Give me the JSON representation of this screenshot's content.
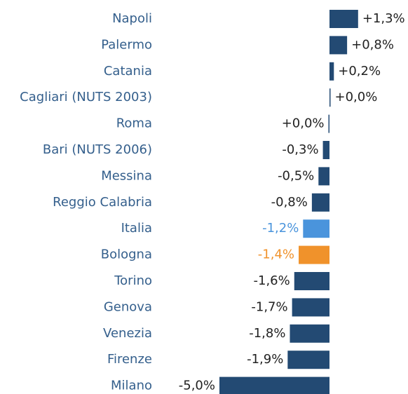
{
  "chart_data": {
    "type": "bar",
    "orientation": "horizontal",
    "categories": [
      "Napoli",
      "Palermo",
      "Catania",
      "Cagliari (NUTS 2003)",
      "Roma",
      "Bari (NUTS 2006)",
      "Messina",
      "Reggio Calabria",
      "Italia",
      "Bologna",
      "Torino",
      "Genova",
      "Venezia",
      "Firenze",
      "Milano"
    ],
    "values": [
      1.3,
      0.8,
      0.2,
      0.04,
      0.0,
      -0.3,
      -0.5,
      -0.8,
      -1.2,
      -1.4,
      -1.6,
      -1.7,
      -1.8,
      -1.9,
      -5.0
    ],
    "value_labels": [
      "+1,3%",
      "+0,8%",
      "+0,2%",
      "+0,0%",
      "+0,0%",
      "-0,3%",
      "-0,5%",
      "-0,8%",
      "-1,2%",
      "-1,4%",
      "-1,6%",
      "-1,7%",
      "-1,8%",
      "-1,9%",
      "-5,0%"
    ],
    "colors": [
      "#234a73",
      "#234a73",
      "#234a73",
      "#234a73",
      "#234a73",
      "#234a73",
      "#234a73",
      "#234a73",
      "#4a94dc",
      "#f0922b",
      "#234a73",
      "#234a73",
      "#234a73",
      "#234a73",
      "#234a73"
    ]
  }
}
